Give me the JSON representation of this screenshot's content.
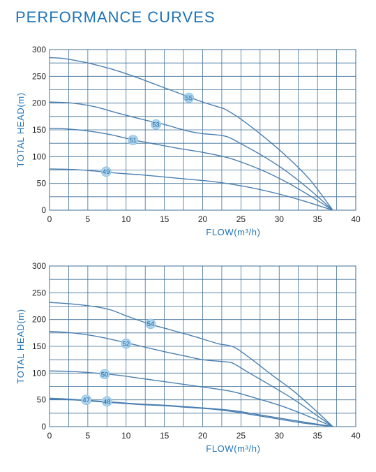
{
  "page_title": "PERFORMANCE CURVES",
  "colors": {
    "title": "#1f73b7",
    "curve": "#4a7fb0",
    "grid": "#3f6f96",
    "marker": "#a9d3ee"
  },
  "chart_data": [
    {
      "type": "line",
      "xlabel": "FLOW(m³/h)",
      "ylabel": "TOTAL HEAD(m)",
      "xlim": [
        0,
        40
      ],
      "ylim": [
        0,
        300
      ],
      "xticks": [
        0,
        5,
        10,
        15,
        20,
        25,
        30,
        35,
        40
      ],
      "yticks": [
        0,
        50,
        100,
        150,
        200,
        250,
        300
      ],
      "grid": true,
      "series": [
        {
          "name": "55",
          "label_at": [
            18.2,
            210
          ],
          "points": [
            [
              0,
              285
            ],
            [
              2,
              283
            ],
            [
              5,
              275
            ],
            [
              8,
              264
            ],
            [
              11,
              250
            ],
            [
              14,
              234
            ],
            [
              17,
              218
            ],
            [
              20,
              202
            ],
            [
              22,
              193
            ],
            [
              23,
              188
            ],
            [
              25,
              170
            ],
            [
              28,
              137
            ],
            [
              31,
              100
            ],
            [
              34,
              57
            ],
            [
              37,
              0
            ]
          ]
        },
        {
          "name": "53",
          "label_at": [
            13.9,
            160
          ],
          "points": [
            [
              0,
              202
            ],
            [
              3,
              200
            ],
            [
              6,
              193
            ],
            [
              9,
              181
            ],
            [
              12,
              170
            ],
            [
              15,
              160
            ],
            [
              18,
              148
            ],
            [
              20,
              143
            ],
            [
              23,
              138
            ],
            [
              25,
              124
            ],
            [
              28,
              100
            ],
            [
              31,
              72
            ],
            [
              34,
              38
            ],
            [
              37,
              0
            ]
          ]
        },
        {
          "name": "51",
          "label_at": [
            10.9,
            131
          ],
          "points": [
            [
              0,
              153
            ],
            [
              2,
              152
            ],
            [
              5,
              148
            ],
            [
              8,
              141
            ],
            [
              11,
              131
            ],
            [
              14,
              123
            ],
            [
              17,
              115
            ],
            [
              20,
              108
            ],
            [
              23,
              99
            ],
            [
              25,
              90
            ],
            [
              28,
              73
            ],
            [
              31,
              52
            ],
            [
              34,
              27
            ],
            [
              37,
              0
            ]
          ]
        },
        {
          "name": "49",
          "label_at": [
            7.4,
            72
          ],
          "points": [
            [
              0,
              77
            ],
            [
              3,
              76
            ],
            [
              6,
              73
            ],
            [
              9,
              69
            ],
            [
              12,
              66
            ],
            [
              15,
              62
            ],
            [
              18,
              58
            ],
            [
              21,
              54
            ],
            [
              24,
              48
            ],
            [
              27,
              40
            ],
            [
              30,
              30
            ],
            [
              33,
              18
            ],
            [
              37,
              0
            ]
          ]
        }
      ]
    },
    {
      "type": "line",
      "xlabel": "FLOW(m³/h)",
      "ylabel": "TOTAL HEAD(m)",
      "xlim": [
        0,
        40
      ],
      "ylim": [
        0,
        300
      ],
      "xticks": [
        0,
        5,
        10,
        15,
        20,
        25,
        30,
        35,
        40
      ],
      "yticks": [
        0,
        50,
        100,
        150,
        200,
        250,
        300
      ],
      "grid": true,
      "series": [
        {
          "name": "54",
          "label_at": [
            13.2,
            192
          ],
          "points": [
            [
              0,
              232
            ],
            [
              3,
              229
            ],
            [
              6,
              224
            ],
            [
              8,
              218
            ],
            [
              10,
              207
            ],
            [
              13,
              192
            ],
            [
              16,
              180
            ],
            [
              19,
              168
            ],
            [
              22,
              155
            ],
            [
              24,
              149
            ],
            [
              26,
              130
            ],
            [
              29,
              97
            ],
            [
              32,
              65
            ],
            [
              35,
              27
            ],
            [
              37,
              0
            ]
          ]
        },
        {
          "name": "52",
          "label_at": [
            10.0,
            155
          ],
          "points": [
            [
              0,
              178
            ],
            [
              3,
              175
            ],
            [
              6,
              169
            ],
            [
              9,
              160
            ],
            [
              12,
              150
            ],
            [
              15,
              140
            ],
            [
              18,
              131
            ],
            [
              20,
              125
            ],
            [
              23,
              121
            ],
            [
              24,
              118
            ],
            [
              26,
              101
            ],
            [
              29,
              76
            ],
            [
              32,
              50
            ],
            [
              35,
              20
            ],
            [
              37,
              0
            ]
          ]
        },
        {
          "name": "50",
          "label_at": [
            7.2,
            98
          ],
          "points": [
            [
              0,
              104
            ],
            [
              3,
              103
            ],
            [
              6,
              100
            ],
            [
              9,
              96
            ],
            [
              12,
              90
            ],
            [
              15,
              84
            ],
            [
              18,
              78
            ],
            [
              21,
              72
            ],
            [
              24,
              65
            ],
            [
              27,
              53
            ],
            [
              30,
              40
            ],
            [
              33,
              24
            ],
            [
              37,
              0
            ]
          ]
        },
        {
          "name": "48",
          "label_at": [
            7.5,
            47
          ],
          "points": [
            [
              0,
              53
            ],
            [
              3,
              51
            ],
            [
              6,
              48
            ],
            [
              9,
              45
            ],
            [
              12,
              42
            ],
            [
              15,
              40
            ],
            [
              18,
              37
            ],
            [
              21,
              34
            ],
            [
              24,
              30
            ],
            [
              27,
              23
            ],
            [
              30,
              16
            ],
            [
              33,
              9
            ],
            [
              37,
              0
            ]
          ]
        },
        {
          "name": "47",
          "label_at": [
            4.8,
            50
          ],
          "points": [
            [
              0,
              51
            ],
            [
              3,
              50
            ],
            [
              6,
              47
            ],
            [
              9,
              44
            ],
            [
              12,
              41
            ],
            [
              15,
              39
            ],
            [
              18,
              36
            ],
            [
              21,
              33
            ],
            [
              24,
              28
            ],
            [
              27,
              21
            ],
            [
              30,
              14
            ],
            [
              33,
              7
            ],
            [
              37,
              0
            ]
          ]
        }
      ]
    }
  ]
}
